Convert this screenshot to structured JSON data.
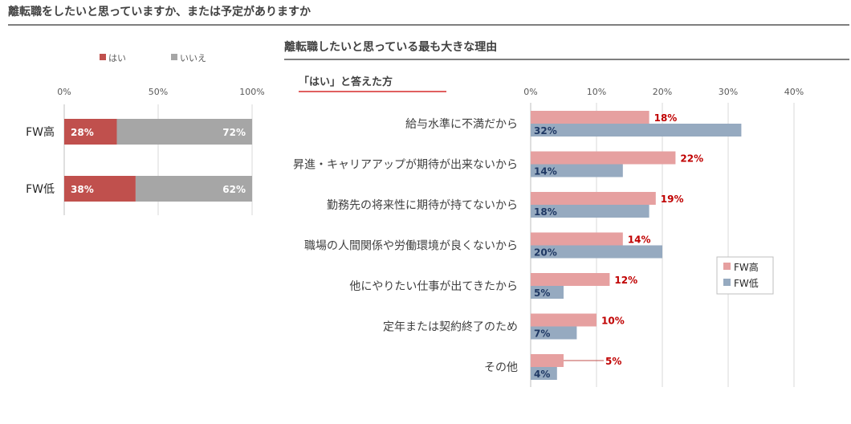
{
  "page": {
    "main_title": "離転職をしたいと思っていますか、または予定がありますか",
    "sub_title": "離転職したいと思っている最も大きな理由",
    "sub_note": "「はい」と答えた方"
  },
  "colors": {
    "yes": "#c0504d",
    "no": "#a6a6a6",
    "fw_high": "#e6a0a0",
    "fw_low": "#96aac0",
    "fw_high_label": "#c00000",
    "fw_low_label": "#1f3864",
    "rule": "#7f7f7f",
    "accent_rule": "#e06060"
  },
  "chart_data": [
    {
      "type": "bar",
      "orientation": "horizontal",
      "stacked": true,
      "percent": true,
      "categories": [
        "FW高",
        "FW低"
      ],
      "series": [
        {
          "name": "はい",
          "values": [
            28,
            38
          ]
        },
        {
          "name": "いいえ",
          "values": [
            72,
            62
          ]
        }
      ],
      "xlim": [
        0,
        100
      ],
      "x_ticks": [
        "0%",
        "50%",
        "100%"
      ],
      "legend": "top",
      "grid": true
    },
    {
      "type": "bar",
      "orientation": "horizontal",
      "categories": [
        "給与水準に不満だから",
        "昇進・キャリアアップが期待が出来ないから",
        "勤務先の将来性に期待が持てないから",
        "職場の人間関係や労働環境が良くないから",
        "他にやりたい仕事が出てきたから",
        "定年または契約終了のため",
        "その他"
      ],
      "series": [
        {
          "name": "FW高",
          "values": [
            18,
            22,
            19,
            14,
            12,
            10,
            5
          ]
        },
        {
          "name": "FW低",
          "values": [
            32,
            14,
            18,
            20,
            5,
            7,
            4
          ]
        }
      ],
      "xlim": [
        0,
        40
      ],
      "x_ticks": [
        "0%",
        "10%",
        "20%",
        "30%",
        "40%"
      ],
      "legend": "right",
      "grid": true
    }
  ]
}
